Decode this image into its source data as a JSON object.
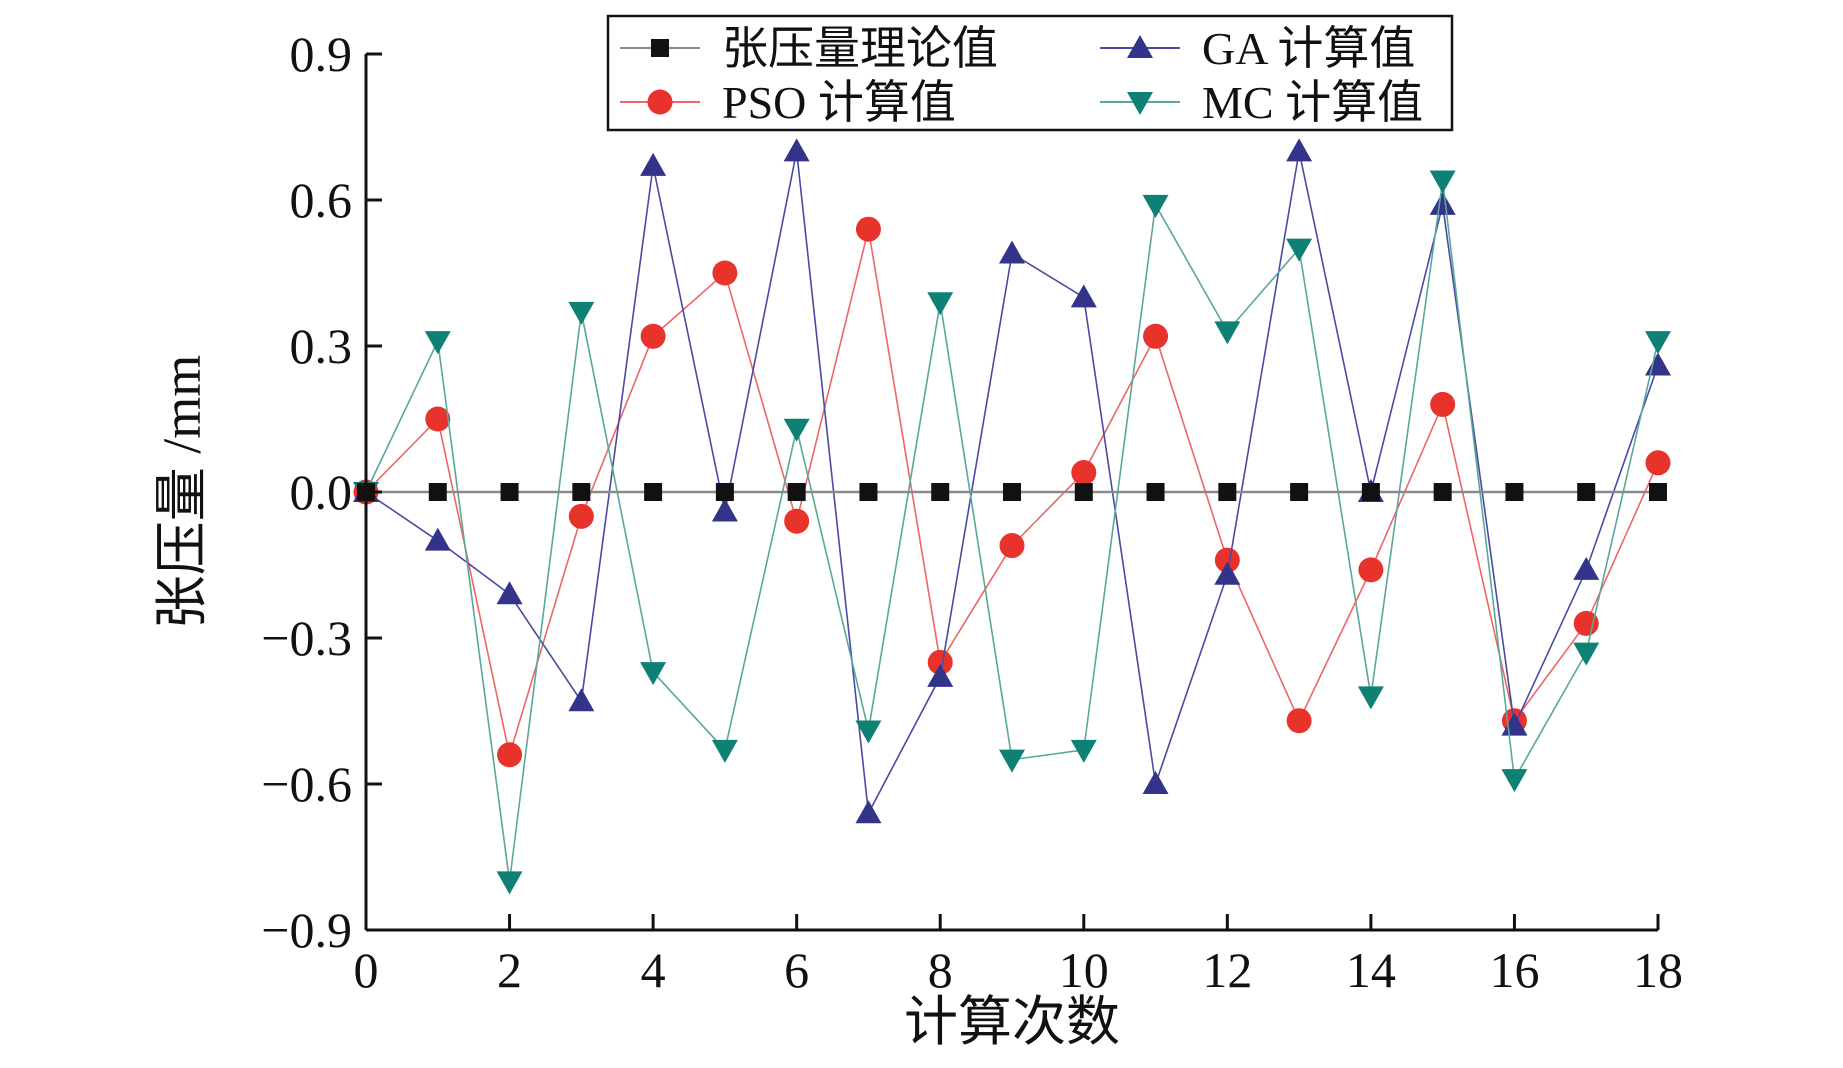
{
  "chart_data": {
    "type": "line",
    "title": "",
    "xlabel": "计算次数",
    "ylabel": "张压量 /mm",
    "xlim": [
      0,
      18
    ],
    "ylim": [
      -0.9,
      0.9
    ],
    "xticks": [
      0,
      2,
      4,
      6,
      8,
      10,
      12,
      14,
      16,
      18
    ],
    "xtick_labels": [
      "0",
      "2",
      "4",
      "6",
      "8",
      "10",
      "12",
      "14",
      "16",
      "18"
    ],
    "yticks": [
      0.9,
      0.6,
      0.3,
      0.0,
      -0.3,
      -0.6,
      -0.9
    ],
    "ytick_labels": [
      "0.9",
      "0.6",
      "0.3",
      "0.0",
      "−0.3",
      "−0.6",
      "−0.9"
    ],
    "grid": false,
    "legend_position": "top",
    "x": [
      0,
      1,
      2,
      3,
      4,
      5,
      6,
      7,
      8,
      9,
      10,
      11,
      12,
      13,
      14,
      15,
      16,
      17,
      18
    ],
    "series": [
      {
        "name": "张压量理论值",
        "marker": "square",
        "line_color": "#8a8a8a",
        "marker_color": "#111111",
        "values": [
          0,
          0,
          0,
          0,
          0,
          0,
          0,
          0,
          0,
          0,
          0,
          0,
          0,
          0,
          0,
          0,
          0,
          0,
          0
        ]
      },
      {
        "name": "PSO 计算值",
        "marker": "circle",
        "line_color": "#ee6666",
        "marker_color": "#e8322c",
        "values": [
          0.0,
          0.15,
          -0.54,
          -0.05,
          0.32,
          0.45,
          -0.06,
          0.54,
          -0.35,
          -0.11,
          0.04,
          0.32,
          -0.14,
          -0.47,
          -0.16,
          0.18,
          -0.47,
          -0.27,
          0.06
        ]
      },
      {
        "name": "GA 计算值",
        "marker": "triangle-up",
        "line_color": "#4a4aa3",
        "marker_color": "#33338a",
        "values": [
          0.0,
          -0.1,
          -0.21,
          -0.43,
          0.67,
          -0.04,
          0.7,
          -0.66,
          -0.38,
          0.49,
          0.4,
          -0.6,
          -0.17,
          0.7,
          0.0,
          0.59,
          -0.48,
          -0.16,
          0.26
        ]
      },
      {
        "name": "MC 计算值",
        "marker": "triangle-down",
        "line_color": "#5aa89a",
        "marker_color": "#0f8074",
        "values": [
          0.0,
          0.31,
          -0.8,
          0.37,
          -0.37,
          -0.53,
          0.13,
          -0.49,
          0.39,
          -0.55,
          -0.53,
          0.59,
          0.33,
          0.5,
          -0.42,
          0.64,
          -0.59,
          -0.33,
          0.31
        ]
      }
    ]
  }
}
